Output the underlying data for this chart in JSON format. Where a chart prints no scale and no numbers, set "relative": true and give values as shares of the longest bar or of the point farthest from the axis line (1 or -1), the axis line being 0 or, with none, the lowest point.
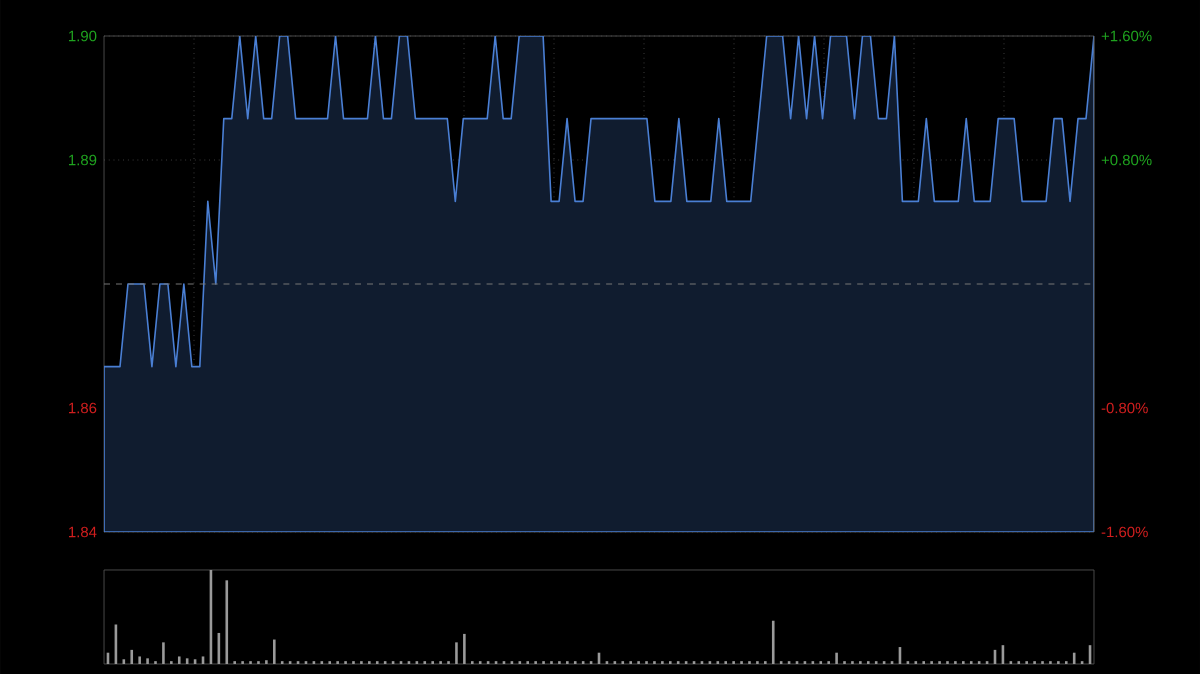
{
  "chart_data": [
    {
      "type": "area",
      "color": "#4a7fd4",
      "grid": true,
      "categories": [
        null,
        null,
        null,
        null,
        null,
        null,
        null,
        null,
        null,
        null,
        null,
        null,
        null,
        null,
        null,
        null,
        null,
        null,
        null,
        null,
        null,
        null,
        null,
        null,
        null,
        null,
        null,
        null,
        null,
        null,
        null,
        null,
        null,
        null,
        null,
        null,
        null,
        null,
        null,
        null,
        null,
        null,
        null,
        null,
        null,
        null,
        null,
        null,
        null,
        null,
        null,
        null,
        null,
        null,
        null,
        null,
        null,
        null,
        null,
        null,
        null,
        null,
        null,
        null,
        null,
        null,
        null,
        null,
        null,
        null,
        null,
        null,
        null,
        null,
        null,
        null,
        null,
        null,
        null,
        null,
        null,
        null,
        null,
        null,
        null,
        null,
        null,
        null,
        null,
        null,
        null,
        null,
        null,
        null,
        null,
        null,
        null,
        null,
        null,
        null,
        null,
        null,
        null,
        null,
        null,
        null,
        null,
        null,
        null,
        null,
        null,
        null,
        null,
        null,
        null,
        null,
        null,
        null,
        null,
        null,
        null,
        null,
        null,
        null,
        null
      ],
      "values": [
        1.86,
        1.86,
        1.86,
        1.87,
        1.87,
        1.87,
        1.86,
        1.87,
        1.87,
        1.86,
        1.87,
        1.86,
        1.86,
        1.88,
        1.87,
        1.89,
        1.89,
        1.9,
        1.89,
        1.9,
        1.89,
        1.89,
        1.9,
        1.9,
        1.89,
        1.89,
        1.89,
        1.89,
        1.89,
        1.9,
        1.89,
        1.89,
        1.89,
        1.89,
        1.9,
        1.89,
        1.89,
        1.9,
        1.9,
        1.89,
        1.89,
        1.89,
        1.89,
        1.89,
        1.88,
        1.89,
        1.89,
        1.89,
        1.89,
        1.9,
        1.89,
        1.89,
        1.9,
        1.9,
        1.9,
        1.9,
        1.88,
        1.88,
        1.89,
        1.88,
        1.88,
        1.89,
        1.89,
        1.89,
        1.89,
        1.89,
        1.89,
        1.89,
        1.89,
        1.88,
        1.88,
        1.88,
        1.89,
        1.88,
        1.88,
        1.88,
        1.88,
        1.89,
        1.88,
        1.88,
        1.88,
        1.88,
        1.89,
        1.9,
        1.9,
        1.9,
        1.89,
        1.9,
        1.89,
        1.9,
        1.89,
        1.9,
        1.9,
        1.9,
        1.89,
        1.9,
        1.9,
        1.89,
        1.89,
        1.9,
        1.88,
        1.88,
        1.88,
        1.89,
        1.88,
        1.88,
        1.88,
        1.88,
        1.89,
        1.88,
        1.88,
        1.88,
        1.89,
        1.89,
        1.89,
        1.88,
        1.88,
        1.88,
        1.88,
        1.89,
        1.89,
        1.88,
        1.89,
        1.89,
        1.9
      ],
      "ylim": [
        1.84,
        1.9
      ],
      "yticks": [
        {
          "value": 1.84,
          "label": "1.84"
        },
        {
          "value": 1.855,
          "label": "1.86"
        },
        {
          "value": 1.885,
          "label": "1.89"
        },
        {
          "value": 1.9,
          "label": "1.90"
        }
      ],
      "y2lim": [
        -1.6,
        1.6
      ],
      "y2ticks": [
        {
          "value": -1.6,
          "label": "-1.60%"
        },
        {
          "value": -0.8,
          "label": "-0.80%"
        },
        {
          "value": 0.8,
          "label": "+0.80%"
        },
        {
          "value": 1.6,
          "label": "+1.60%"
        }
      ],
      "ref_lines": [
        {
          "axis": "y",
          "value": 1.87,
          "color": "#777777",
          "line_style": "dashed"
        }
      ]
    },
    {
      "type": "bar",
      "relative": true,
      "color": "#9a9a9a",
      "categories": [
        null,
        null,
        null,
        null,
        null,
        null,
        null,
        null,
        null,
        null,
        null,
        null,
        null,
        null,
        null,
        null,
        null,
        null,
        null,
        null,
        null,
        null,
        null,
        null,
        null,
        null,
        null,
        null,
        null,
        null,
        null,
        null,
        null,
        null,
        null,
        null,
        null,
        null,
        null,
        null,
        null,
        null,
        null,
        null,
        null,
        null,
        null,
        null,
        null,
        null,
        null,
        null,
        null,
        null,
        null,
        null,
        null,
        null,
        null,
        null,
        null,
        null,
        null,
        null,
        null,
        null,
        null,
        null,
        null,
        null,
        null,
        null,
        null,
        null,
        null,
        null,
        null,
        null,
        null,
        null,
        null,
        null,
        null,
        null,
        null,
        null,
        null,
        null,
        null,
        null,
        null,
        null,
        null,
        null,
        null,
        null,
        null,
        null,
        null,
        null,
        null,
        null,
        null,
        null,
        null,
        null,
        null,
        null,
        null,
        null,
        null,
        null,
        null,
        null,
        null,
        null,
        null,
        null,
        null,
        null,
        null,
        null,
        null,
        null,
        null
      ],
      "values": [
        0.12,
        0.42,
        0.05,
        0.15,
        0.08,
        0.06,
        0.03,
        0.23,
        0.03,
        0.08,
        0.06,
        0.05,
        0.08,
        1.0,
        0.33,
        0.89,
        0.03,
        0.03,
        0.03,
        0.03,
        0.04,
        0.26,
        0.03,
        0.03,
        0.03,
        0.03,
        0.03,
        0.03,
        0.03,
        0.03,
        0.03,
        0.03,
        0.03,
        0.03,
        0.03,
        0.03,
        0.03,
        0.03,
        0.03,
        0.03,
        0.03,
        0.03,
        0.03,
        0.03,
        0.23,
        0.32,
        0.03,
        0.03,
        0.03,
        0.03,
        0.03,
        0.03,
        0.03,
        0.03,
        0.03,
        0.03,
        0.03,
        0.03,
        0.03,
        0.03,
        0.03,
        0.03,
        0.12,
        0.03,
        0.03,
        0.03,
        0.03,
        0.03,
        0.03,
        0.03,
        0.03,
        0.03,
        0.03,
        0.03,
        0.03,
        0.03,
        0.03,
        0.03,
        0.03,
        0.03,
        0.03,
        0.03,
        0.03,
        0.03,
        0.46,
        0.03,
        0.03,
        0.03,
        0.03,
        0.03,
        0.03,
        0.03,
        0.12,
        0.03,
        0.03,
        0.03,
        0.03,
        0.03,
        0.03,
        0.03,
        0.18,
        0.03,
        0.03,
        0.03,
        0.03,
        0.03,
        0.03,
        0.03,
        0.03,
        0.03,
        0.03,
        0.03,
        0.15,
        0.2,
        0.03,
        0.03,
        0.03,
        0.03,
        0.03,
        0.03,
        0.03,
        0.03,
        0.12,
        0.03,
        0.2
      ]
    }
  ]
}
